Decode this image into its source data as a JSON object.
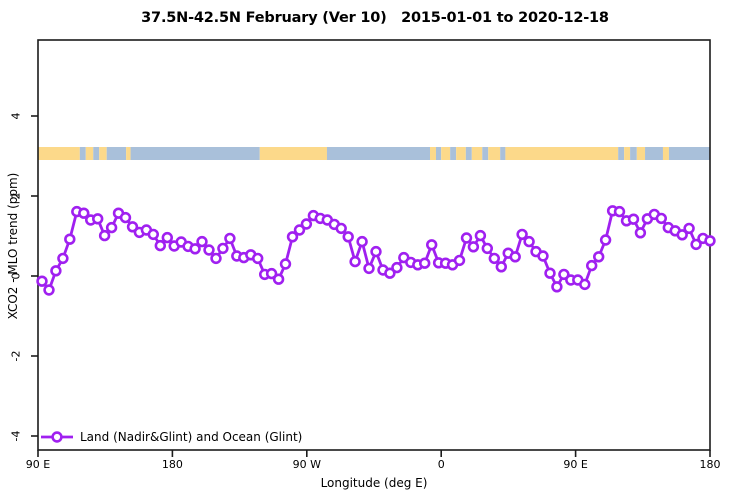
{
  "title": "37.5N-42.5N February (Ver 10)   2015-01-01 to 2020-12-18",
  "legend": {
    "label": "Land (Nadir&Glint) and Ocean (Glint)"
  },
  "colors": {
    "series": "#A020F0",
    "marker_fill": "#ffffff",
    "land": "#FCD98A",
    "ocean": "#A9C0DA",
    "axis": "#1c1c1c",
    "background": "#ffffff"
  },
  "x_axis": {
    "label": "Longitude (deg E)",
    "ticks": [
      "90 E",
      "180",
      "90 W",
      "0",
      "90 E",
      "180"
    ]
  },
  "y_axis": {
    "label": "XCO2 - MLO trend (ppm)",
    "ticks": [
      "4",
      "2",
      "0",
      "-2",
      "-4"
    ],
    "tick_values": [
      4,
      2,
      0,
      -2,
      -4
    ]
  },
  "map_strip": {
    "description": "land/ocean mask band drawn at y value ~3 ppm",
    "value_level": 3,
    "segments": [
      {
        "type": "land",
        "from_deg": 90,
        "to_deg": 118
      },
      {
        "type": "ocean",
        "from_deg": 118,
        "to_deg": 122
      },
      {
        "type": "land",
        "from_deg": 122,
        "to_deg": 127
      },
      {
        "type": "ocean",
        "from_deg": 127,
        "to_deg": 131
      },
      {
        "type": "land",
        "from_deg": 131,
        "to_deg": 136
      },
      {
        "type": "ocean",
        "from_deg": 136,
        "to_deg": 149
      },
      {
        "type": "land",
        "from_deg": 149,
        "to_deg": 152
      },
      {
        "type": "ocean",
        "from_deg": 152,
        "to_deg": 238.5
      },
      {
        "type": "land",
        "from_deg": 238.5,
        "to_deg": 283.5
      },
      {
        "type": "ocean",
        "from_deg": 283.5,
        "to_deg": 352.5
      },
      {
        "type": "land",
        "from_deg": 352.5,
        "to_deg": 356.5
      },
      {
        "type": "ocean",
        "from_deg": 356.5,
        "to_deg": 360
      },
      {
        "type": "land",
        "from_deg": 360,
        "to_deg": 366
      },
      {
        "type": "ocean",
        "from_deg": 366,
        "to_deg": 370
      },
      {
        "type": "land",
        "from_deg": 370,
        "to_deg": 376.5
      },
      {
        "type": "ocean",
        "from_deg": 376.5,
        "to_deg": 380.5
      },
      {
        "type": "land",
        "from_deg": 380.5,
        "to_deg": 387.5
      },
      {
        "type": "ocean",
        "from_deg": 387.5,
        "to_deg": 391.5
      },
      {
        "type": "land",
        "from_deg": 391.5,
        "to_deg": 399.5
      },
      {
        "type": "ocean",
        "from_deg": 399.5,
        "to_deg": 403
      },
      {
        "type": "land",
        "from_deg": 403,
        "to_deg": 478.5
      },
      {
        "type": "ocean",
        "from_deg": 478.5,
        "to_deg": 482.5
      },
      {
        "type": "land",
        "from_deg": 482.5,
        "to_deg": 486.5
      },
      {
        "type": "ocean",
        "from_deg": 486.5,
        "to_deg": 491
      },
      {
        "type": "land",
        "from_deg": 491,
        "to_deg": 496.5
      },
      {
        "type": "ocean",
        "from_deg": 496.5,
        "to_deg": 508.5
      },
      {
        "type": "land",
        "from_deg": 508.5,
        "to_deg": 512.5
      },
      {
        "type": "ocean",
        "from_deg": 512.5,
        "to_deg": 540
      }
    ]
  },
  "chart_data": {
    "type": "line",
    "title": "37.5N-42.5N February (Ver 10)   2015-01-01 to 2020-12-18",
    "xlabel": "Longitude (deg E)",
    "ylabel": "XCO2 - MLO trend (ppm)",
    "marker": "open-circle",
    "grid": false,
    "legend_position": "bottom-left",
    "series_name": "Land (Nadir&Glint) and Ocean (Glint)",
    "x_axis_wrap_note": "x axis spans 450 deg of longitude: 90E -> 180 -> 90W -> 0 -> 90E -> 180",
    "xlim_deg": [
      90,
      540
    ],
    "ylim": [
      -4.35,
      5.9
    ],
    "xtick_labels": [
      "90 E",
      "180",
      "90 W",
      "0",
      "90 E",
      "180"
    ],
    "ytick_values": [
      4,
      2,
      0,
      -2,
      -4
    ],
    "x_start_deg": 92.7,
    "x_step_deg": 4.66,
    "values": [
      -0.13,
      -0.35,
      0.13,
      0.44,
      0.92,
      1.61,
      1.57,
      1.4,
      1.43,
      1.01,
      1.21,
      1.57,
      1.46,
      1.23,
      1.09,
      1.15,
      1.04,
      0.76,
      0.96,
      0.75,
      0.85,
      0.74,
      0.68,
      0.86,
      0.65,
      0.44,
      0.69,
      0.94,
      0.5,
      0.46,
      0.53,
      0.44,
      0.04,
      0.06,
      -0.08,
      0.3,
      0.98,
      1.15,
      1.3,
      1.51,
      1.44,
      1.4,
      1.29,
      1.19,
      0.98,
      0.36,
      0.86,
      0.19,
      0.61,
      0.15,
      0.07,
      0.21,
      0.46,
      0.34,
      0.28,
      0.32,
      0.78,
      0.33,
      0.32,
      0.28,
      0.39,
      0.95,
      0.73,
      1.01,
      0.69,
      0.44,
      0.23,
      0.57,
      0.48,
      1.04,
      0.86,
      0.61,
      0.5,
      0.07,
      -0.27,
      0.04,
      -0.1,
      -0.1,
      -0.21,
      0.26,
      0.48,
      0.9,
      1.63,
      1.61,
      1.38,
      1.42,
      1.08,
      1.43,
      1.54,
      1.44,
      1.21,
      1.13,
      1.03,
      1.19,
      0.79,
      0.94,
      0.88
    ]
  }
}
